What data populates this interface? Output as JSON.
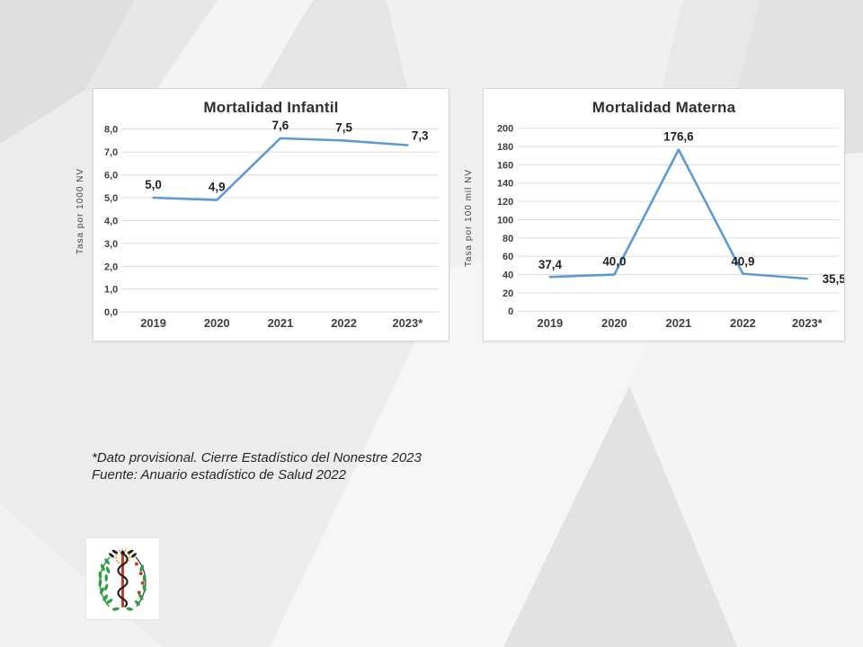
{
  "slide": {
    "footnote_line1": "*Dato provisional. Cierre Estadístico del Nonestre 2023",
    "footnote_line2": "Fuente: Anuario estadístico de Salud 2022",
    "logo_name": "rod-of-asclepius-with-laurel-emblem"
  },
  "colors": {
    "line": "#5B9BD5",
    "grid": "#dcdcdc",
    "tick_text": "#3f3f3f",
    "data_label": "#1f1f1f",
    "panel_border": "#d8d8d8"
  },
  "chart_data": [
    {
      "type": "line",
      "title": "Mortalidad Infantil",
      "ylabel": "Tasa por 1000 NV",
      "categories": [
        "2019",
        "2020",
        "2021",
        "2022",
        "2023*"
      ],
      "values": [
        5.0,
        4.9,
        7.6,
        7.5,
        7.3
      ],
      "data_labels": [
        "5,0",
        "4,9",
        "7,6",
        "7,5",
        "7,3"
      ],
      "ylim": [
        0,
        8
      ],
      "ytick_step": 1,
      "ytick_labels": [
        "0,0",
        "1,0",
        "2,0",
        "3,0",
        "4,0",
        "5,0",
        "6,0",
        "7,0",
        "8,0"
      ],
      "grid": true,
      "legend": "none",
      "line_color": "#5B9BD5"
    },
    {
      "type": "line",
      "title": "Mortalidad Materna",
      "ylabel": "Tasa por 100 mil NV",
      "categories": [
        "2019",
        "2020",
        "2021",
        "2022",
        "2023*"
      ],
      "values": [
        37.4,
        40.0,
        176.6,
        40.9,
        35.5
      ],
      "data_labels": [
        "37,4",
        "40,0",
        "176,6",
        "40,9",
        "35,5"
      ],
      "ylim": [
        0,
        200
      ],
      "ytick_step": 20,
      "ytick_labels": [
        "0",
        "20",
        "40",
        "60",
        "80",
        "100",
        "120",
        "140",
        "160",
        "180",
        "200"
      ],
      "grid": true,
      "legend": "none",
      "line_color": "#5B9BD5"
    }
  ]
}
